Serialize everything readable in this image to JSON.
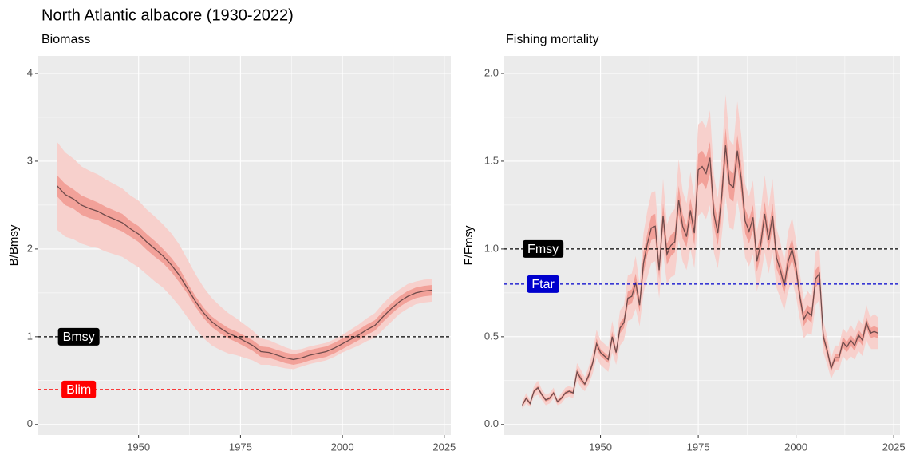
{
  "title": "North Atlantic albacore (1930-2022)",
  "chart_data": [
    {
      "type": "line",
      "subtitle": "Biomass",
      "ylabel": "B/Bmsy",
      "xlim": [
        1925.4,
        2026.6
      ],
      "xticks": [
        1950,
        1975,
        2000,
        2025
      ],
      "ylim": [
        -0.12,
        4.2
      ],
      "yticks": [
        0,
        1,
        2,
        3,
        4
      ],
      "grid": true,
      "x": [
        1930,
        1932,
        1934,
        1936,
        1938,
        1940,
        1942,
        1944,
        1946,
        1948,
        1950,
        1952,
        1954,
        1956,
        1958,
        1960,
        1962,
        1964,
        1966,
        1968,
        1970,
        1972,
        1974,
        1976,
        1978,
        1980,
        1982,
        1984,
        1986,
        1988,
        1990,
        1992,
        1994,
        1996,
        1998,
        2000,
        2002,
        2004,
        2006,
        2008,
        2010,
        2012,
        2014,
        2016,
        2018,
        2020,
        2022
      ],
      "values": [
        2.72,
        2.62,
        2.57,
        2.5,
        2.46,
        2.43,
        2.38,
        2.34,
        2.3,
        2.23,
        2.17,
        2.08,
        2.0,
        1.92,
        1.82,
        1.7,
        1.55,
        1.4,
        1.27,
        1.17,
        1.1,
        1.04,
        1.0,
        0.95,
        0.9,
        0.83,
        0.82,
        0.79,
        0.76,
        0.74,
        0.76,
        0.79,
        0.81,
        0.83,
        0.87,
        0.92,
        0.97,
        1.02,
        1.08,
        1.13,
        1.23,
        1.32,
        1.4,
        1.46,
        1.5,
        1.52,
        1.53
      ],
      "color": "#6e4b4b",
      "bands": [
        {
          "color": "#f7d0cc",
          "lower": [
            2.22,
            2.14,
            2.11,
            2.06,
            2.03,
            2.01,
            1.97,
            1.94,
            1.91,
            1.85,
            1.79,
            1.71,
            1.63,
            1.56,
            1.46,
            1.35,
            1.22,
            1.09,
            0.98,
            0.9,
            0.85,
            0.81,
            0.79,
            0.76,
            0.73,
            0.68,
            0.68,
            0.66,
            0.64,
            0.63,
            0.66,
            0.69,
            0.71,
            0.73,
            0.77,
            0.82,
            0.86,
            0.9,
            0.95,
            0.99,
            1.08,
            1.17,
            1.26,
            1.32,
            1.37,
            1.39,
            1.4
          ],
          "upper": [
            3.22,
            3.1,
            3.03,
            2.94,
            2.89,
            2.85,
            2.79,
            2.74,
            2.69,
            2.61,
            2.55,
            2.45,
            2.37,
            2.28,
            2.18,
            2.05,
            1.88,
            1.71,
            1.56,
            1.44,
            1.35,
            1.27,
            1.21,
            1.14,
            1.07,
            0.98,
            0.96,
            0.92,
            0.88,
            0.85,
            0.86,
            0.89,
            0.91,
            0.93,
            0.97,
            1.02,
            1.08,
            1.14,
            1.21,
            1.27,
            1.38,
            1.47,
            1.54,
            1.6,
            1.63,
            1.65,
            1.66
          ]
        },
        {
          "color": "#f2a199",
          "lower": [
            2.6,
            2.5,
            2.46,
            2.39,
            2.35,
            2.33,
            2.28,
            2.24,
            2.2,
            2.14,
            2.08,
            1.99,
            1.91,
            1.84,
            1.74,
            1.62,
            1.49,
            1.34,
            1.21,
            1.11,
            1.04,
            0.98,
            0.94,
            0.89,
            0.84,
            0.77,
            0.76,
            0.73,
            0.7,
            0.68,
            0.7,
            0.73,
            0.75,
            0.77,
            0.81,
            0.86,
            0.91,
            0.96,
            1.02,
            1.07,
            1.17,
            1.26,
            1.34,
            1.4,
            1.44,
            1.46,
            1.47
          ],
          "upper": [
            2.84,
            2.74,
            2.68,
            2.61,
            2.57,
            2.53,
            2.48,
            2.44,
            2.4,
            2.32,
            2.26,
            2.17,
            2.09,
            2.0,
            1.9,
            1.78,
            1.61,
            1.46,
            1.33,
            1.23,
            1.16,
            1.1,
            1.06,
            1.01,
            0.96,
            0.89,
            0.88,
            0.85,
            0.82,
            0.8,
            0.82,
            0.85,
            0.87,
            0.89,
            0.93,
            0.98,
            1.03,
            1.08,
            1.14,
            1.19,
            1.29,
            1.38,
            1.46,
            1.52,
            1.56,
            1.58,
            1.59
          ]
        }
      ],
      "reference_lines": [
        {
          "label": "Bmsy",
          "value": 1,
          "color": "#000000"
        },
        {
          "label": "Blim",
          "value": 0.4,
          "color": "#ff0000"
        }
      ]
    },
    {
      "type": "line",
      "subtitle": "Fishing mortality",
      "ylabel": "F/Fmsy",
      "xlim": [
        1925.4,
        2026.6
      ],
      "xticks": [
        1950,
        1975,
        2000,
        {
          "value": 2025,
          "label": "2025"
        }
      ],
      "ylim": [
        -0.06,
        2.1
      ],
      "yticks": [
        {
          "value": 0,
          "label": "0.0"
        },
        0.5,
        {
          "value": 1,
          "label": "1.0"
        },
        1.5,
        {
          "value": 2,
          "label": "2.0"
        }
      ],
      "grid": true,
      "x": [
        1930,
        1931,
        1932,
        1933,
        1934,
        1935,
        1936,
        1937,
        1938,
        1939,
        1940,
        1941,
        1942,
        1943,
        1944,
        1945,
        1946,
        1947,
        1948,
        1949,
        1950,
        1951,
        1952,
        1953,
        1954,
        1955,
        1956,
        1957,
        1958,
        1959,
        1960,
        1961,
        1962,
        1963,
        1964,
        1965,
        1966,
        1967,
        1968,
        1969,
        1970,
        1971,
        1972,
        1973,
        1974,
        1975,
        1976,
        1977,
        1978,
        1979,
        1980,
        1981,
        1982,
        1983,
        1984,
        1985,
        1986,
        1987,
        1988,
        1989,
        1990,
        1991,
        1992,
        1993,
        1994,
        1995,
        1996,
        1997,
        1998,
        1999,
        2000,
        2001,
        2002,
        2003,
        2004,
        2005,
        2006,
        2007,
        2008,
        2009,
        2010,
        2011,
        2012,
        2013,
        2014,
        2015,
        2016,
        2017,
        2018,
        2019,
        2020,
        2021
      ],
      "values": [
        0.11,
        0.15,
        0.12,
        0.19,
        0.21,
        0.17,
        0.14,
        0.15,
        0.18,
        0.13,
        0.15,
        0.18,
        0.19,
        0.18,
        0.3,
        0.26,
        0.23,
        0.28,
        0.35,
        0.46,
        0.41,
        0.39,
        0.37,
        0.5,
        0.41,
        0.55,
        0.58,
        0.72,
        0.73,
        0.81,
        0.68,
        0.92,
        1.03,
        1.12,
        1.13,
        0.88,
        1.19,
        0.97,
        1.02,
        1.04,
        1.28,
        1.13,
        1.07,
        1.22,
        1.09,
        1.45,
        1.47,
        1.43,
        1.52,
        1.2,
        1.09,
        1.3,
        1.59,
        1.37,
        1.35,
        1.56,
        1.4,
        1.16,
        1.1,
        1.18,
        0.93,
        1.03,
        1.2,
        1.05,
        1.19,
        0.95,
        0.88,
        0.79,
        0.93,
        1.0,
        0.89,
        0.73,
        0.6,
        0.64,
        0.62,
        0.83,
        0.86,
        0.5,
        0.42,
        0.32,
        0.38,
        0.38,
        0.47,
        0.44,
        0.48,
        0.45,
        0.51,
        0.48,
        0.58,
        0.52,
        0.53,
        0.52
      ],
      "color": "#6e4b4b",
      "bands": [
        {
          "color": "#f7d0cc",
          "lower": [
            0.09,
            0.12,
            0.1,
            0.16,
            0.17,
            0.14,
            0.11,
            0.12,
            0.15,
            0.11,
            0.12,
            0.15,
            0.16,
            0.15,
            0.25,
            0.21,
            0.19,
            0.23,
            0.29,
            0.38,
            0.34,
            0.32,
            0.3,
            0.41,
            0.34,
            0.45,
            0.48,
            0.59,
            0.6,
            0.66,
            0.56,
            0.75,
            0.84,
            0.92,
            0.93,
            0.72,
            0.98,
            0.8,
            0.84,
            0.85,
            1.05,
            0.93,
            0.88,
            1.0,
            0.89,
            1.19,
            1.21,
            1.17,
            1.25,
            0.98,
            0.89,
            1.07,
            1.3,
            1.12,
            1.11,
            1.28,
            1.15,
            0.95,
            0.9,
            0.97,
            0.76,
            0.84,
            0.98,
            0.86,
            0.98,
            0.78,
            0.72,
            0.65,
            0.76,
            0.82,
            0.73,
            0.6,
            0.49,
            0.52,
            0.51,
            0.68,
            0.71,
            0.41,
            0.34,
            0.26,
            0.31,
            0.31,
            0.39,
            0.36,
            0.39,
            0.37,
            0.42,
            0.39,
            0.48,
            0.43,
            0.43,
            0.43
          ],
          "upper": [
            0.13,
            0.18,
            0.14,
            0.22,
            0.25,
            0.2,
            0.17,
            0.18,
            0.21,
            0.15,
            0.18,
            0.21,
            0.22,
            0.21,
            0.35,
            0.31,
            0.27,
            0.33,
            0.41,
            0.54,
            0.48,
            0.46,
            0.44,
            0.59,
            0.48,
            0.65,
            0.68,
            0.85,
            0.86,
            0.96,
            0.8,
            1.09,
            1.22,
            1.32,
            1.33,
            1.04,
            1.4,
            1.14,
            1.2,
            1.23,
            1.51,
            1.33,
            1.26,
            1.44,
            1.29,
            1.71,
            1.73,
            1.69,
            1.79,
            1.42,
            1.29,
            1.53,
            1.88,
            1.62,
            1.59,
            1.84,
            1.65,
            1.37,
            1.3,
            1.39,
            1.1,
            1.22,
            1.42,
            1.24,
            1.4,
            1.12,
            1.04,
            0.93,
            1.1,
            1.18,
            1.05,
            0.86,
            0.71,
            0.76,
            0.73,
            0.98,
            1.01,
            0.59,
            0.5,
            0.38,
            0.45,
            0.45,
            0.55,
            0.52,
            0.57,
            0.53,
            0.6,
            0.57,
            0.68,
            0.61,
            0.63,
            0.61
          ]
        },
        {
          "color": "#f2a199",
          "lower": [
            0.1,
            0.14,
            0.11,
            0.18,
            0.2,
            0.16,
            0.13,
            0.14,
            0.17,
            0.12,
            0.14,
            0.17,
            0.18,
            0.17,
            0.28,
            0.24,
            0.22,
            0.26,
            0.33,
            0.43,
            0.39,
            0.37,
            0.35,
            0.47,
            0.39,
            0.52,
            0.55,
            0.68,
            0.69,
            0.76,
            0.64,
            0.86,
            0.97,
            1.05,
            1.06,
            0.83,
            1.12,
            0.91,
            0.96,
            0.98,
            1.2,
            1.06,
            1.01,
            1.15,
            1.02,
            1.36,
            1.38,
            1.34,
            1.43,
            1.13,
            1.02,
            1.22,
            1.49,
            1.29,
            1.27,
            1.47,
            1.32,
            1.09,
            1.03,
            1.11,
            0.87,
            0.97,
            1.13,
            0.99,
            1.12,
            0.89,
            0.83,
            0.74,
            0.87,
            0.94,
            0.84,
            0.69,
            0.56,
            0.6,
            0.58,
            0.78,
            0.81,
            0.47,
            0.39,
            0.3,
            0.36,
            0.36,
            0.44,
            0.41,
            0.45,
            0.42,
            0.48,
            0.45,
            0.55,
            0.49,
            0.5,
            0.49
          ],
          "upper": [
            0.12,
            0.16,
            0.13,
            0.2,
            0.22,
            0.18,
            0.15,
            0.16,
            0.19,
            0.14,
            0.16,
            0.19,
            0.2,
            0.19,
            0.32,
            0.28,
            0.24,
            0.3,
            0.37,
            0.49,
            0.43,
            0.41,
            0.39,
            0.53,
            0.43,
            0.58,
            0.61,
            0.76,
            0.77,
            0.86,
            0.72,
            0.98,
            1.09,
            1.19,
            1.2,
            0.93,
            1.26,
            1.03,
            1.08,
            1.1,
            1.36,
            1.2,
            1.13,
            1.29,
            1.16,
            1.54,
            1.56,
            1.52,
            1.61,
            1.27,
            1.16,
            1.38,
            1.69,
            1.45,
            1.43,
            1.65,
            1.48,
            1.23,
            1.17,
            1.25,
            0.99,
            1.09,
            1.27,
            1.11,
            1.26,
            1.01,
            0.93,
            0.84,
            0.99,
            1.06,
            0.94,
            0.77,
            0.64,
            0.68,
            0.66,
            0.88,
            0.91,
            0.53,
            0.45,
            0.34,
            0.4,
            0.4,
            0.5,
            0.47,
            0.51,
            0.48,
            0.54,
            0.51,
            0.61,
            0.55,
            0.56,
            0.55
          ]
        }
      ],
      "reference_lines": [
        {
          "label": "Fmsy",
          "value": 1,
          "color": "#000000"
        },
        {
          "label": "Ftar",
          "value": 0.8,
          "color": "#0000cd"
        }
      ]
    }
  ]
}
